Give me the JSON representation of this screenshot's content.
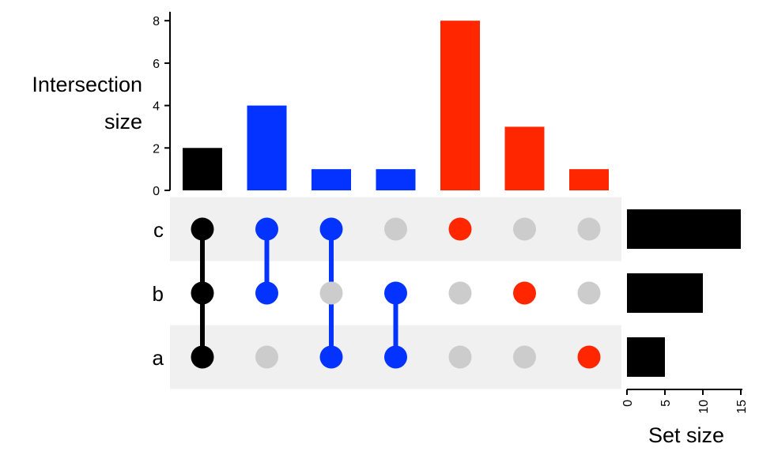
{
  "chart_data": {
    "type": "upset",
    "sets": [
      "c",
      "b",
      "a"
    ],
    "set_sizes": [
      15,
      10,
      5
    ],
    "intersections": [
      {
        "sets": [
          "c",
          "b",
          "a"
        ],
        "size": 2,
        "color": "#000000"
      },
      {
        "sets": [
          "c",
          "b"
        ],
        "size": 4,
        "color": "#0433FF"
      },
      {
        "sets": [
          "c",
          "a"
        ],
        "size": 1,
        "color": "#0433FF"
      },
      {
        "sets": [
          "b",
          "a"
        ],
        "size": 1,
        "color": "#0433FF"
      },
      {
        "sets": [
          "c"
        ],
        "size": 8,
        "color": "#FF2600"
      },
      {
        "sets": [
          "b"
        ],
        "size": 3,
        "color": "#FF2600"
      },
      {
        "sets": [
          "a"
        ],
        "size": 1,
        "color": "#FF2600"
      }
    ],
    "intersection_axis": {
      "title_lines": [
        "Intersection",
        "size"
      ],
      "ylim": [
        0,
        8.2
      ],
      "ticks": [
        0,
        2,
        4,
        6,
        8
      ]
    },
    "set_size_axis": {
      "title": "Set size",
      "xlim": [
        0,
        15.2
      ],
      "ticks": [
        0,
        5,
        10,
        15
      ]
    },
    "colors": {
      "inactive_dot": "#CCCCCC",
      "stripe": "#F0F0F0",
      "set_bar": "#000000"
    }
  }
}
